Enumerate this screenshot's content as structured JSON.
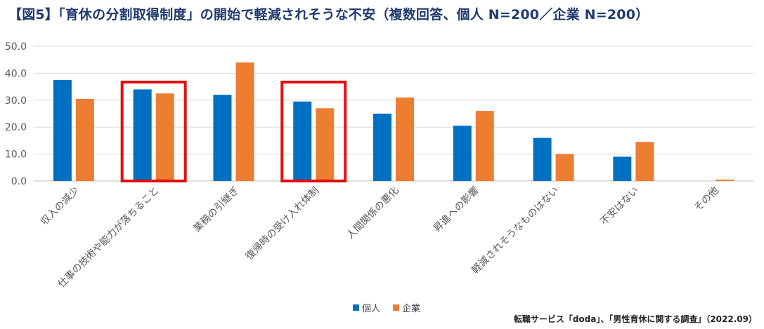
{
  "title": "【図5】「育休の分割取得制度」の開始で軽減されそうな不安（複数回答、個人 N=200／企業 N=200）",
  "source": "転職サービス「doda」、「男性育休に関する調査」（2022.09）",
  "chart_data": {
    "type": "bar",
    "title": "【図5】「育休の分割取得制度」の開始で軽減されそうな不安（複数回答、個人 N=200／企業 N=200）",
    "categories": [
      "収入の減少",
      "仕事の技術や能力が落ちること",
      "業務の引継ぎ",
      "復帰時の受け入れ体制",
      "人間関係の悪化",
      "昇進への影響",
      "軽減されそうなものはない",
      "不安はない",
      "その他"
    ],
    "series": [
      {
        "name": "個人",
        "color": "#0070c0",
        "values": [
          37.5,
          34.0,
          32.0,
          29.5,
          25.0,
          20.5,
          16.0,
          9.0,
          0.0
        ]
      },
      {
        "name": "企業",
        "color": "#ed7d31",
        "values": [
          30.5,
          32.5,
          44.0,
          27.0,
          31.0,
          26.0,
          10.0,
          14.5,
          0.5
        ]
      }
    ],
    "yticks": [
      "0.0",
      "10.0",
      "20.0",
      "30.0",
      "40.0",
      "50.0"
    ],
    "ylim": [
      0,
      50
    ],
    "xlabel": "",
    "ylabel": "",
    "grid": true,
    "legend_position": "bottom",
    "highlighted_categories": [
      "仕事の技術や能力が落ちること",
      "復帰時の受け入れ体制"
    ],
    "highlight_color": "#e01010"
  }
}
